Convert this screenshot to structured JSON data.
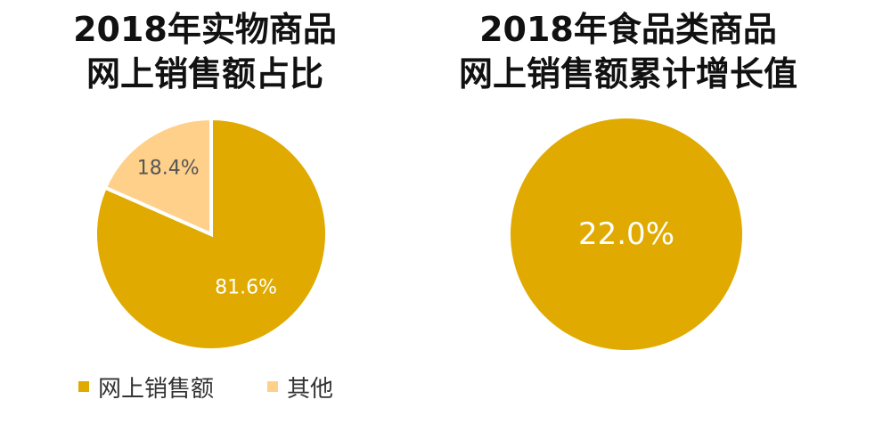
{
  "chart_data": [
    {
      "type": "pie",
      "title": "2018年实物商品网上销售额占比",
      "title_lines": [
        "2018年实物商品",
        "网上销售额占比"
      ],
      "slices": [
        {
          "label": "网上销售额",
          "value": 81.6,
          "display": "81.6%",
          "color": "#E0AA00"
        },
        {
          "label": "其他",
          "value": 18.4,
          "display": "18.4%",
          "color": "#FFD08A"
        }
      ],
      "legend": {
        "placement": "bottom-left",
        "items": [
          {
            "label": "网上销售额",
            "color": "#E0AA00"
          },
          {
            "label": "其他",
            "color": "#FFD08A"
          }
        ]
      }
    },
    {
      "type": "pie",
      "title": "2018年食品类商品网上销售额累计增长值",
      "title_lines": [
        "2018年食品类商品",
        "网上销售额累计增长值"
      ],
      "slices": [
        {
          "label": "",
          "value": 22.0,
          "display": "22.0%",
          "color": "#E0AA00"
        }
      ]
    }
  ]
}
